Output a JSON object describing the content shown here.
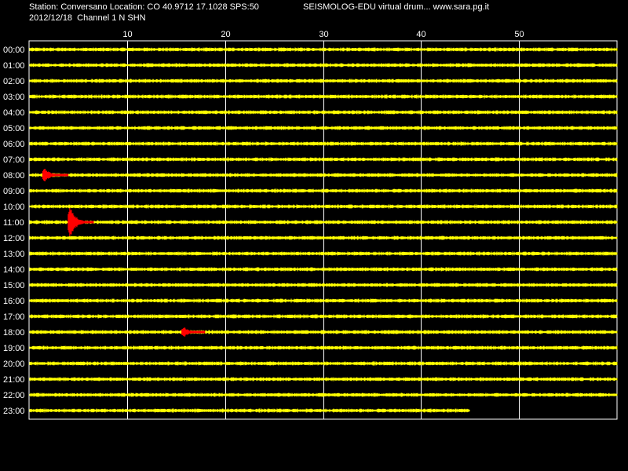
{
  "header": {
    "station_line": "Station: Conversano Location: CO 40.9712 17.1028 SPS:50",
    "date_line": "2012/12/18  Channel 1 N SHN",
    "title_right": "SEISMOLOG-EDU virtual drum... www.sara.pg.it"
  },
  "colors": {
    "background": "#000000",
    "trace": "#ffff00",
    "event": "#ff0000",
    "grid": "#ffffff"
  },
  "chart_data": {
    "type": "line",
    "x_ticks": [
      10,
      20,
      30,
      40,
      50
    ],
    "xlim": [
      0,
      60
    ],
    "hours": [
      "00:00",
      "01:00",
      "02:00",
      "03:00",
      "04:00",
      "05:00",
      "06:00",
      "07:00",
      "08:00",
      "09:00",
      "10:00",
      "11:00",
      "12:00",
      "13:00",
      "14:00",
      "15:00",
      "16:00",
      "17:00",
      "18:00",
      "19:00",
      "20:00",
      "21:00",
      "22:00",
      "23:00"
    ],
    "last_hour_end_minute": 45,
    "events": [
      {
        "hour": "08:00",
        "start_minute": 1.4,
        "end_minute": 4.0,
        "amplitude": 0.7
      },
      {
        "hour": "11:00",
        "start_minute": 4.0,
        "end_minute": 6.6,
        "amplitude": 1.5
      },
      {
        "hour": "18:00",
        "start_minute": 15.6,
        "end_minute": 18.0,
        "amplitude": 0.55
      }
    ]
  }
}
